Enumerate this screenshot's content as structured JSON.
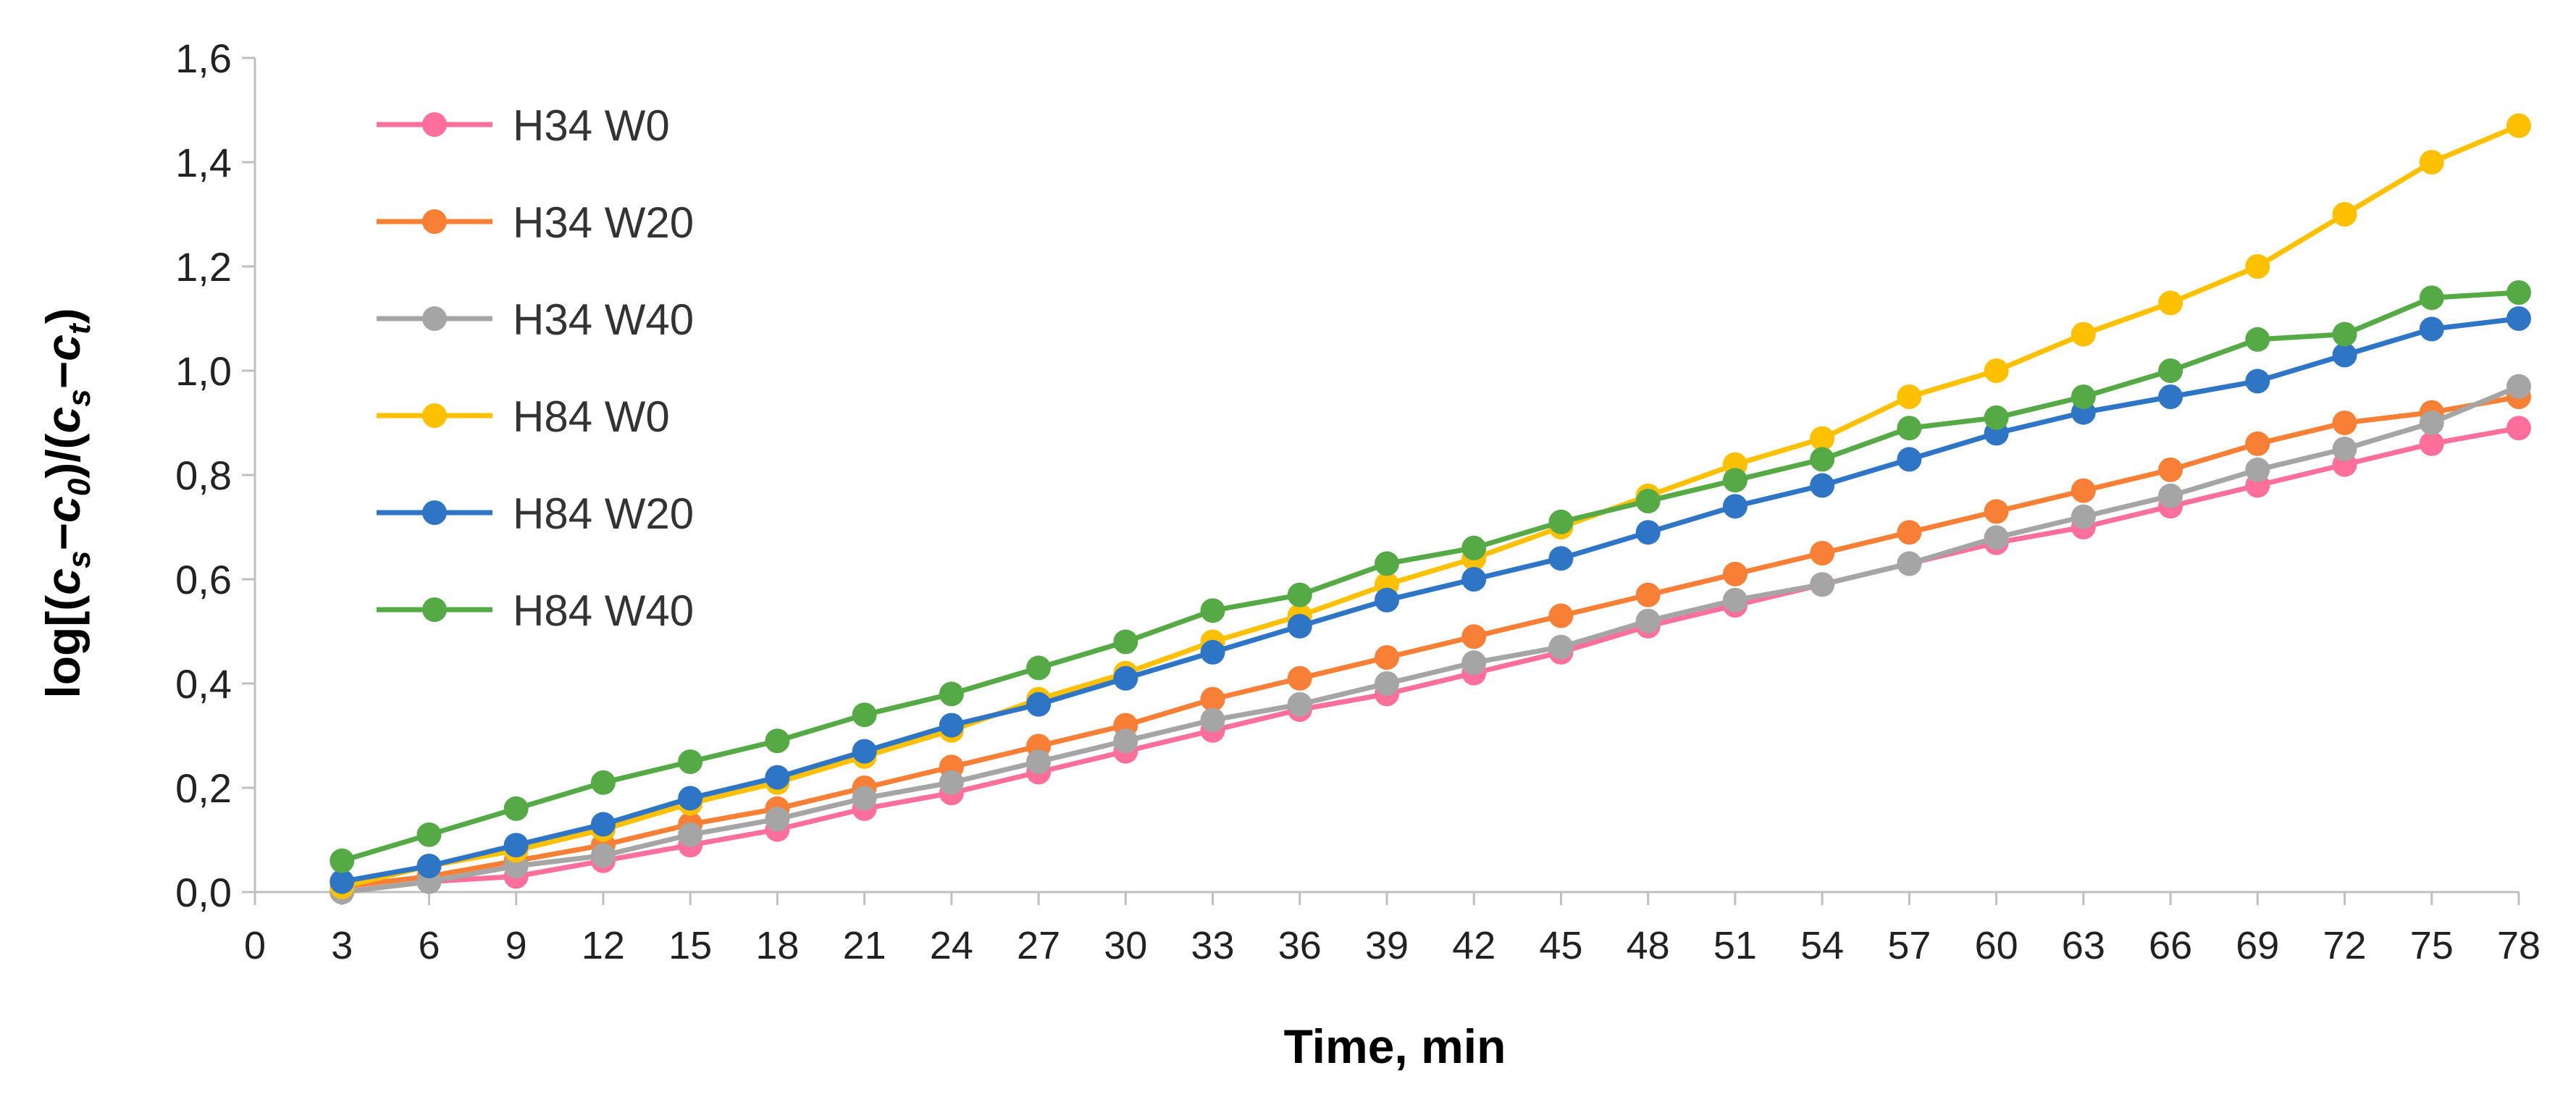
{
  "chart_data": {
    "type": "line",
    "xlabel": "Time, min",
    "ylabel": {
      "prefix": "log[(",
      "c1": "c",
      "s1": "s",
      "minus1": "−",
      "c2": "c",
      "s2": "0",
      "mid": ")/(",
      "c3": "c",
      "s3": "s",
      "minus2": "−",
      "c4": "c",
      "s4": "t",
      "suffix": ")"
    },
    "xlim": [
      0,
      78
    ],
    "ylim": [
      0,
      1.6
    ],
    "x_ticks": [
      "0",
      "3",
      "6",
      "9",
      "12",
      "15",
      "18",
      "21",
      "24",
      "27",
      "30",
      "33",
      "36",
      "39",
      "42",
      "45",
      "48",
      "51",
      "54",
      "57",
      "60",
      "63",
      "66",
      "69",
      "72",
      "75",
      "78"
    ],
    "y_ticks": [
      "0,0",
      "0,2",
      "0,4",
      "0,6",
      "0,8",
      "1,0",
      "1,2",
      "1,4",
      "1,6"
    ],
    "grid": false,
    "legend_position": "top-left",
    "x": [
      3,
      6,
      9,
      12,
      15,
      18,
      21,
      24,
      27,
      30,
      33,
      36,
      39,
      42,
      45,
      48,
      51,
      54,
      57,
      60,
      63,
      66,
      69,
      72,
      75,
      78
    ],
    "series": [
      {
        "name": "H34 W0",
        "color": "#ff6f9c",
        "values": [
          0.0,
          0.02,
          0.03,
          0.06,
          0.09,
          0.12,
          0.16,
          0.19,
          0.23,
          0.27,
          0.31,
          0.35,
          0.38,
          0.42,
          0.46,
          0.51,
          0.55,
          0.59,
          0.63,
          0.67,
          0.7,
          0.74,
          0.78,
          0.82,
          0.86,
          0.89
        ]
      },
      {
        "name": "H34 W20",
        "color": "#f77f36",
        "values": [
          0.01,
          0.03,
          0.06,
          0.09,
          0.13,
          0.16,
          0.2,
          0.24,
          0.28,
          0.32,
          0.37,
          0.41,
          0.45,
          0.49,
          0.53,
          0.57,
          0.61,
          0.65,
          0.69,
          0.73,
          0.77,
          0.81,
          0.86,
          0.9,
          0.92,
          0.95
        ]
      },
      {
        "name": "H34 W40",
        "color": "#a5a5a5",
        "values": [
          0.0,
          0.02,
          0.05,
          0.07,
          0.11,
          0.14,
          0.18,
          0.21,
          0.25,
          0.29,
          0.33,
          0.36,
          0.4,
          0.44,
          0.47,
          0.52,
          0.56,
          0.59,
          0.63,
          0.68,
          0.72,
          0.76,
          0.81,
          0.85,
          0.9,
          0.97
        ]
      },
      {
        "name": "H84 W0",
        "color": "#ffc000",
        "values": [
          0.01,
          0.05,
          0.08,
          0.12,
          0.17,
          0.21,
          0.26,
          0.31,
          0.37,
          0.42,
          0.48,
          0.53,
          0.59,
          0.64,
          0.7,
          0.76,
          0.82,
          0.87,
          0.95,
          1.0,
          1.07,
          1.13,
          1.2,
          1.3,
          1.4,
          1.47
        ]
      },
      {
        "name": "H84 W20",
        "color": "#2e75c6",
        "values": [
          0.02,
          0.05,
          0.09,
          0.13,
          0.18,
          0.22,
          0.27,
          0.32,
          0.36,
          0.41,
          0.46,
          0.51,
          0.56,
          0.6,
          0.64,
          0.69,
          0.74,
          0.78,
          0.83,
          0.88,
          0.92,
          0.95,
          0.98,
          1.03,
          1.08,
          1.1
        ]
      },
      {
        "name": "H84 W40",
        "color": "#56aa45",
        "values": [
          0.06,
          0.11,
          0.16,
          0.21,
          0.25,
          0.29,
          0.34,
          0.38,
          0.43,
          0.48,
          0.54,
          0.57,
          0.63,
          0.66,
          0.71,
          0.75,
          0.79,
          0.83,
          0.89,
          0.91,
          0.95,
          1.0,
          1.06,
          1.07,
          1.14,
          1.15
        ]
      }
    ]
  }
}
